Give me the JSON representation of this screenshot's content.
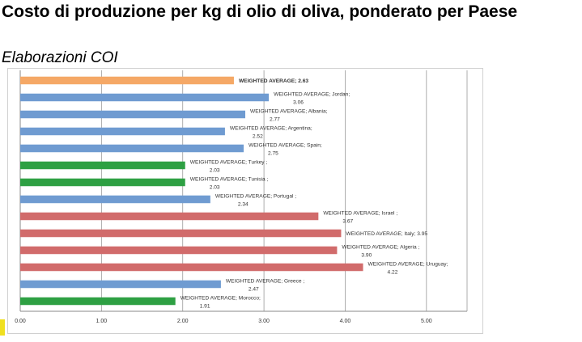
{
  "header": {
    "title": "Costo di produzione per kg di olio di oliva, ponderato per Paese",
    "subtitle": "Elaborazioni COI"
  },
  "chart_data": {
    "type": "bar",
    "orientation": "horizontal",
    "title": "Costo di produzione per kg di olio di oliva, ponderato per Paese",
    "subtitle": "Elaborazioni COI",
    "xlim": [
      0,
      5.5
    ],
    "xticks": [
      0,
      1,
      2,
      3,
      4,
      5
    ],
    "xtick_labels": [
      "0.00",
      "1.00",
      "2.00",
      "3.00",
      "4.00",
      "5.00"
    ],
    "grid": true,
    "bars": [
      {
        "label": "WEIGHTED AVERAGE; 2.63",
        "value": 2.63,
        "color": "#f5a866",
        "bold": true
      },
      {
        "label": "WEIGHTED AVERAGE; Jordan; 3.06",
        "value": 3.06,
        "color": "#6f9bd1"
      },
      {
        "label": "WEIGHTED AVERAGE; Albania; 2.77",
        "value": 2.77,
        "color": "#6f9bd1"
      },
      {
        "label": "WEIGHTED AVERAGE; Argentina; 2.52",
        "value": 2.52,
        "color": "#6f9bd1"
      },
      {
        "label": "WEIGHTED AVERAGE; Spain; 2.75",
        "value": 2.75,
        "color": "#6f9bd1"
      },
      {
        "label": "WEIGHTED AVERAGE; Turkey ; 2.03",
        "value": 2.03,
        "color": "#2ea043"
      },
      {
        "label": "WEIGHTED AVERAGE; Tunisia ; 2.03",
        "value": 2.03,
        "color": "#2ea043"
      },
      {
        "label": "WEIGHTED AVERAGE; Portugal ; 2.34",
        "value": 2.34,
        "color": "#6f9bd1"
      },
      {
        "label": "WEIGHTED AVERAGE; Israel ; 3.67",
        "value": 3.67,
        "color": "#d16b6b"
      },
      {
        "label": "WEIGHTED AVERAGE; Italy; 3.95",
        "value": 3.95,
        "color": "#d16b6b"
      },
      {
        "label": "WEIGHTED AVERAGE; Algeria ; 3.90",
        "value": 3.9,
        "color": "#d16b6b"
      },
      {
        "label": "WEIGHTED AVERAGE; Uruguay; 4.22",
        "value": 4.22,
        "color": "#d16b6b"
      },
      {
        "label": "WEIGHTED AVERAGE; Greece ; 2.47",
        "value": 2.47,
        "color": "#6f9bd1"
      },
      {
        "label": "WEIGHTED AVERAGE; Morocco; 1.91",
        "value": 1.91,
        "color": "#2ea043"
      }
    ]
  }
}
